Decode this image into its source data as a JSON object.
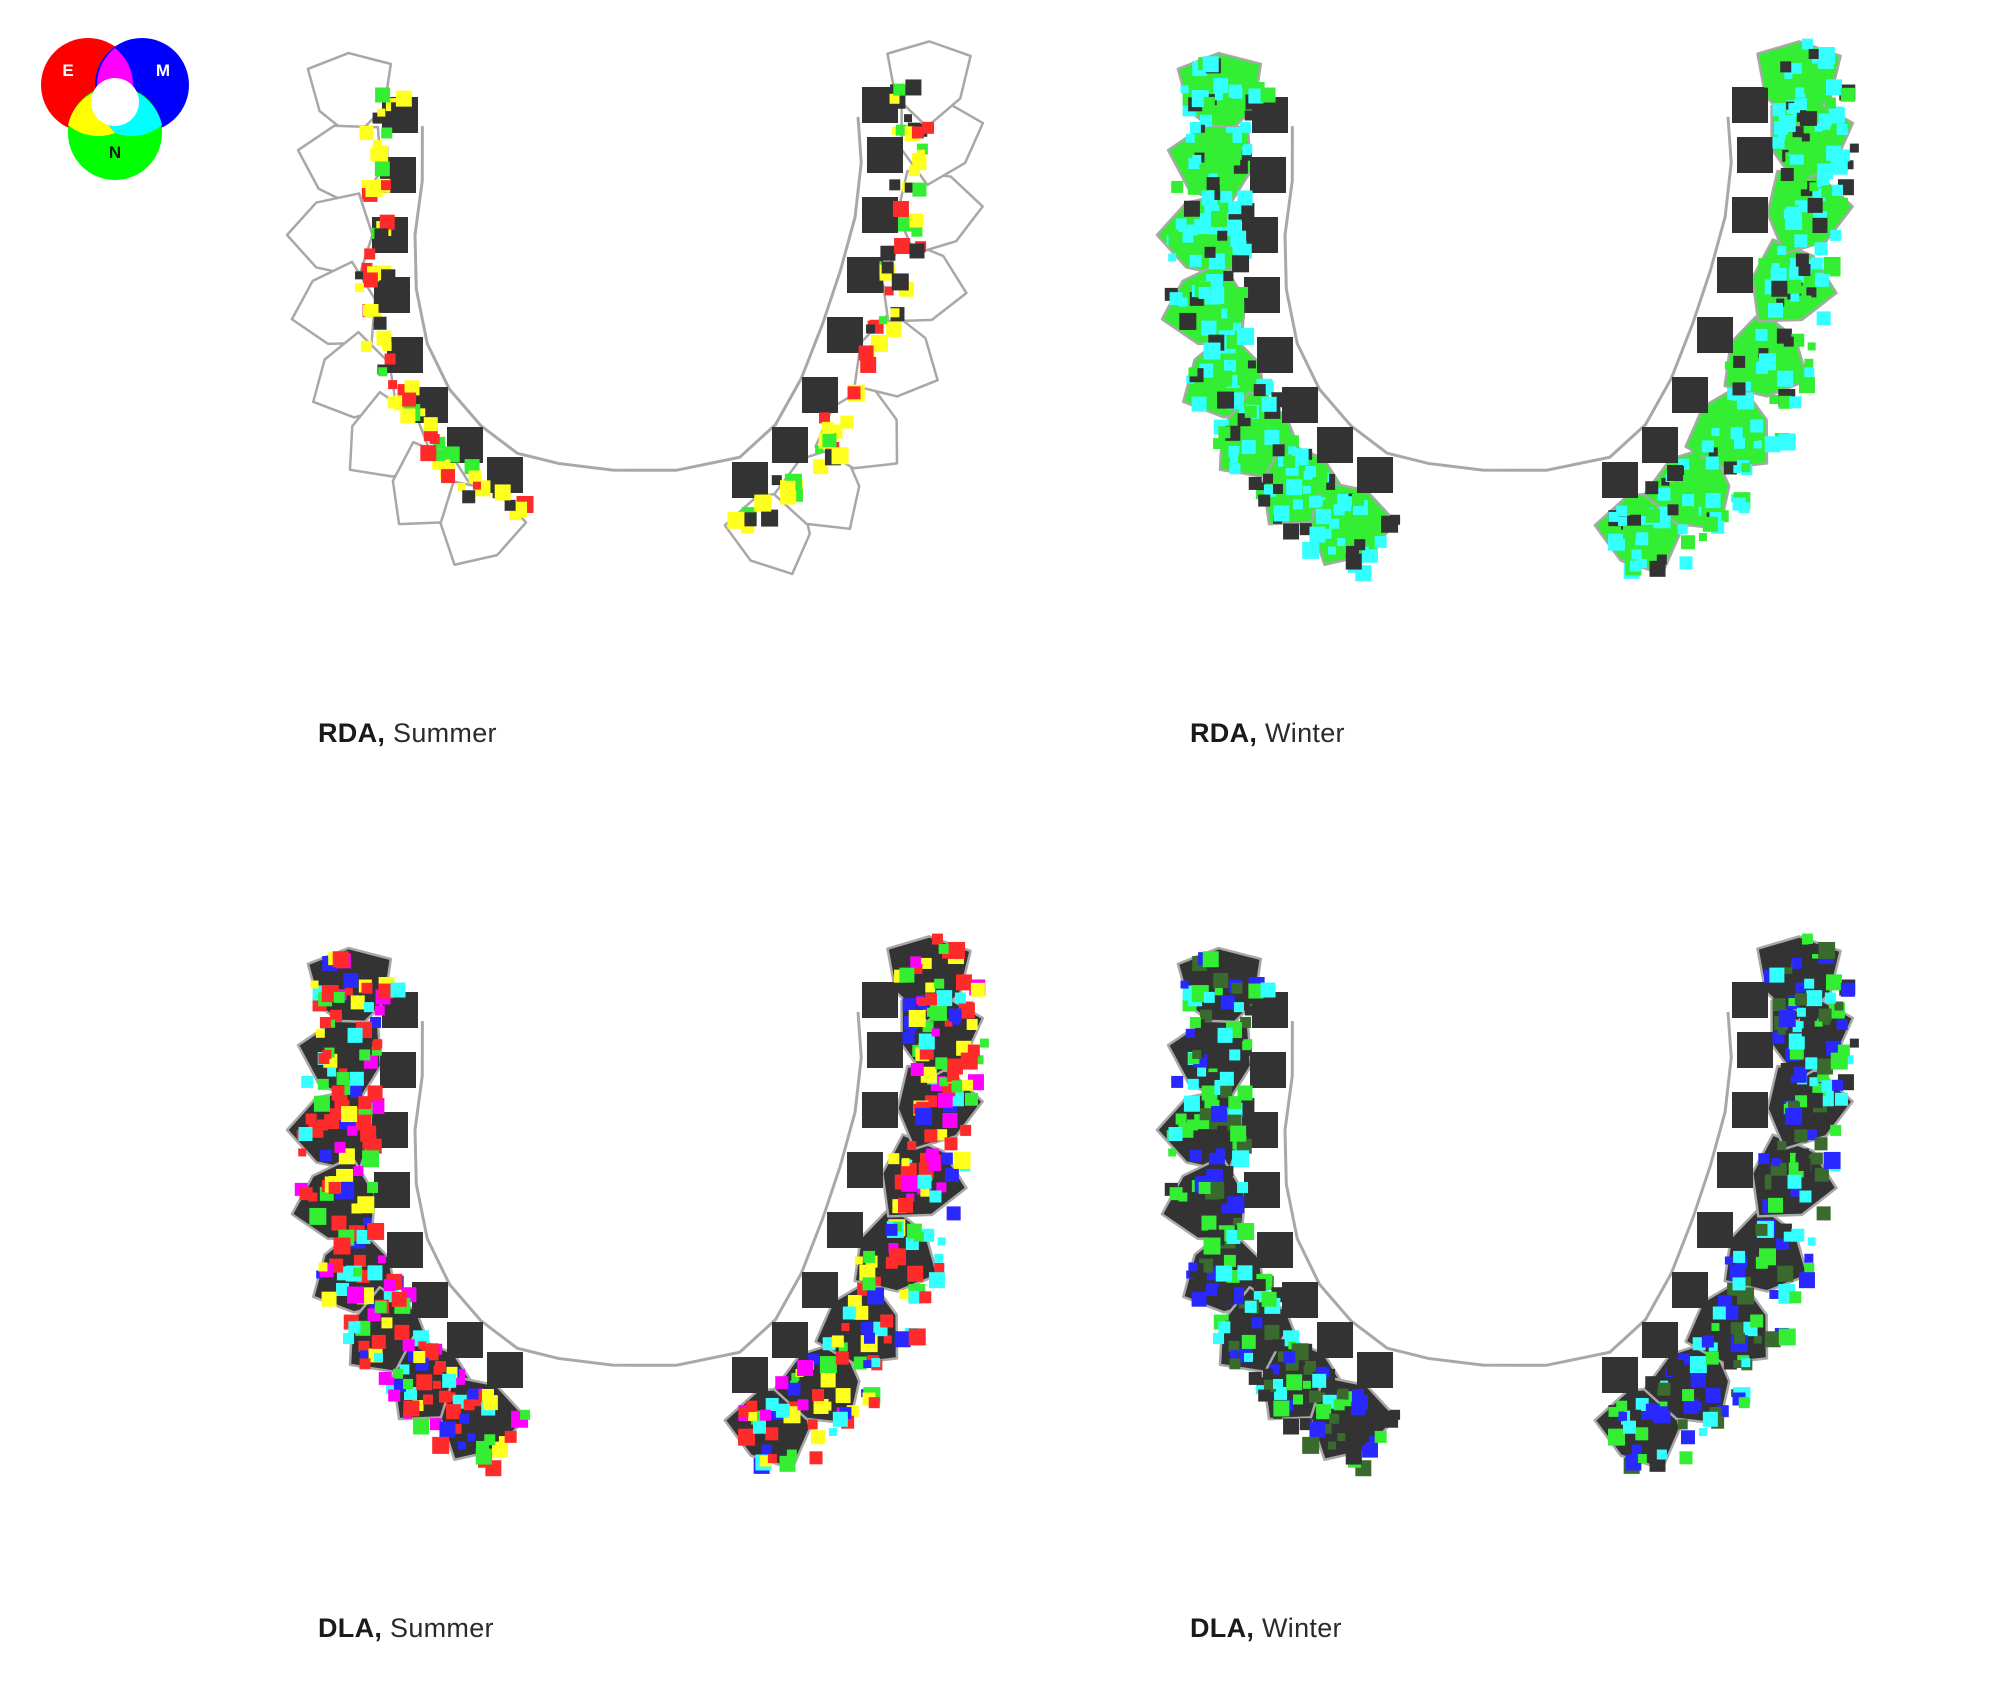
{
  "legend": {
    "labels": {
      "e": "E",
      "m": "M",
      "n": "N"
    },
    "colors": {
      "e": "#ff0000",
      "m": "#0000ff",
      "n": "#00ff00",
      "em": "#ff00ff",
      "en": "#ffff00",
      "mn": "#00ffff",
      "all": "#ffffff"
    }
  },
  "panels": [
    {
      "metric": "RDA,",
      "season": "Summer"
    },
    {
      "metric": "RDA,",
      "season": "Winter"
    },
    {
      "metric": "DLA,",
      "season": "Summer"
    },
    {
      "metric": "DLA,",
      "season": "Winter"
    }
  ],
  "colors": {
    "outline": "#a8a8a8",
    "core": "#333333",
    "red": "#ff2b2b",
    "yellow": "#ffff1e",
    "green": "#33ee33",
    "cyan": "#33ffff",
    "blue": "#2828ff",
    "magenta": "#ff00ff",
    "dark_green": "#3a6a2e"
  }
}
